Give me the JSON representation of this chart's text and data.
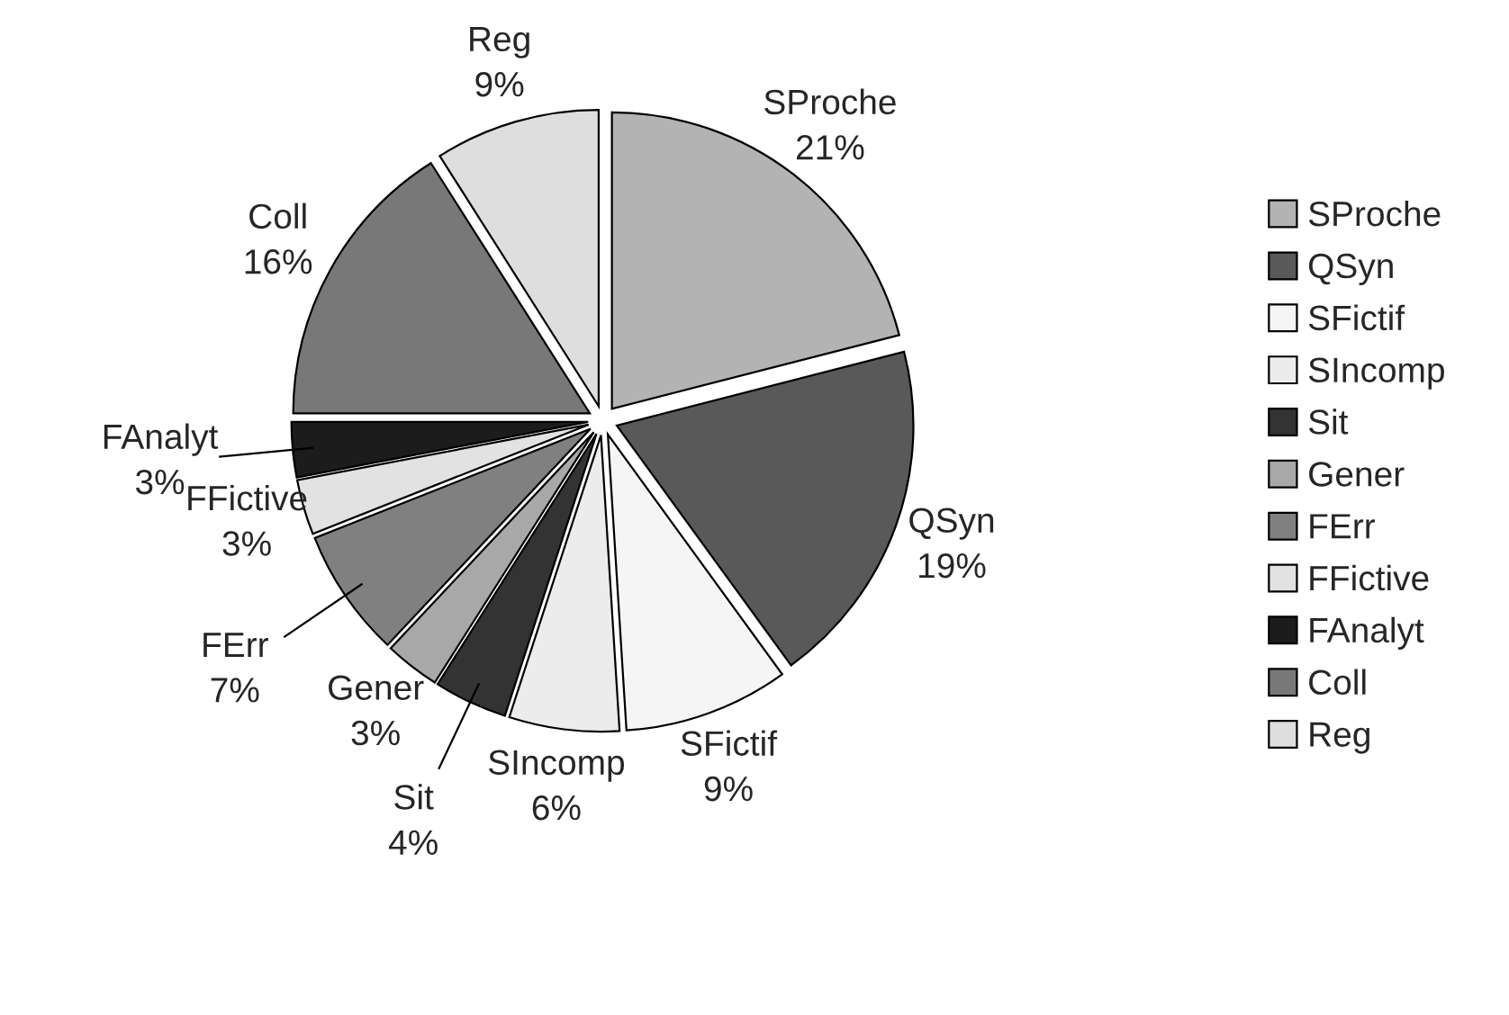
{
  "chart_data": {
    "type": "pie",
    "categories": [
      "SProche",
      "QSyn",
      "SFictif",
      "SIncomp",
      "Sit",
      "Gener",
      "FErr",
      "FFictive",
      "FAnalyt",
      "Coll",
      "Reg"
    ],
    "values": [
      21,
      19,
      9,
      6,
      4,
      3,
      7,
      3,
      3,
      16,
      9
    ],
    "value_labels": [
      "21%",
      "19%",
      "9%",
      "6%",
      "4%",
      "3%",
      "7%",
      "3%",
      "3%",
      "16%",
      "9%"
    ],
    "colors": [
      "#b3b3b3",
      "#595959",
      "#f5f5f5",
      "#ececec",
      "#333333",
      "#a8a8a8",
      "#808080",
      "#e2e2e2",
      "#1c1c1c",
      "#787878",
      "#dedede"
    ],
    "legend": "right"
  }
}
